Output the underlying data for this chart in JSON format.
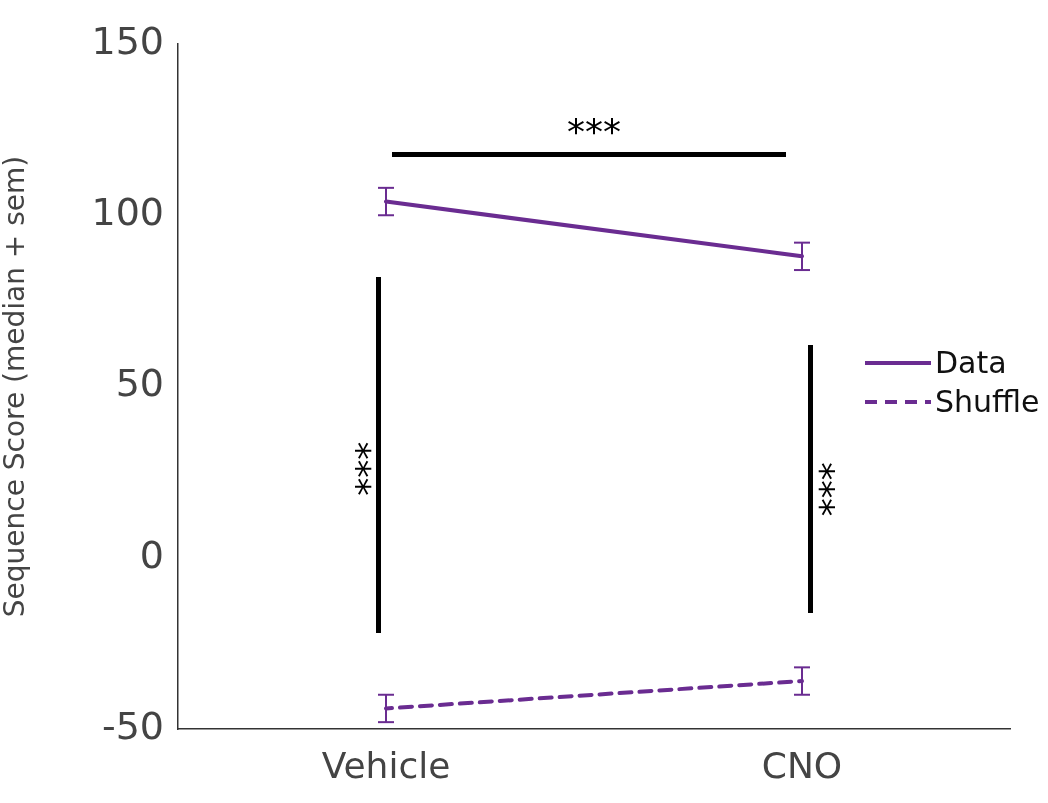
{
  "chart_data": {
    "type": "line",
    "ylabel": "Sequence Score (median + sem)",
    "categories": [
      "Vehicle",
      "CNO"
    ],
    "series": [
      {
        "name": "Data",
        "color": "#6a2c91",
        "values": [
          104,
          88
        ],
        "errors": [
          4,
          4
        ],
        "line_style": "solid"
      },
      {
        "name": "Shuffle",
        "color": "#6a2c91",
        "values": [
          -44,
          -36
        ],
        "errors": [
          4,
          4
        ],
        "line_style": "dashed"
      }
    ],
    "ylim": [
      -50,
      150
    ],
    "yticks": [
      -50,
      0,
      50,
      100,
      150
    ],
    "grid": false,
    "legend": "right",
    "marker": "none",
    "annotations": [
      "***",
      "***",
      "***"
    ]
  }
}
